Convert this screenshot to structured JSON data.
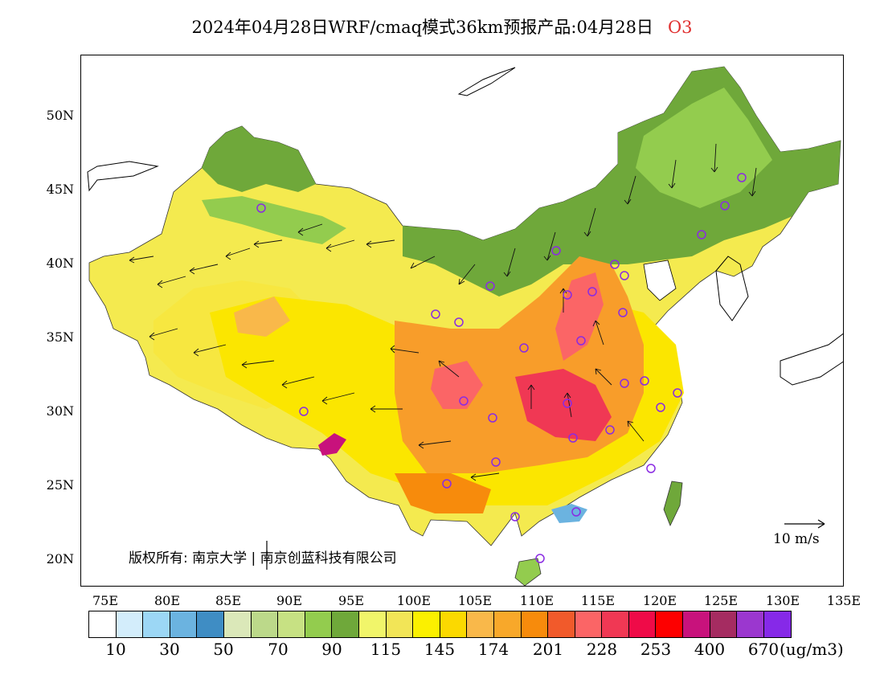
{
  "title": {
    "main": "2024年04月28日WRF/cmaq模式36km预报产品:04月28日",
    "species": "O3"
  },
  "map": {
    "latitude_labels": [
      "50N",
      "45N",
      "40N",
      "35N",
      "30N",
      "25N",
      "20N"
    ],
    "longitude_labels": [
      "75E",
      "80E",
      "85E",
      "90E",
      "95E",
      "100E",
      "105E",
      "110E",
      "115E",
      "120E",
      "125E",
      "130E",
      "135E"
    ],
    "copyright": "版权所有: 南京大学 | 南京创蓝科技有限公司",
    "wind_scale": "10 m/s",
    "colors": {
      "green_low": "#6fa83a",
      "yellow_mid": "#f7e200",
      "orange_high": "#f08a20",
      "red_peak": "#e8354a"
    }
  },
  "colorbar": {
    "colors": [
      "#ffffff",
      "#d3edfb",
      "#9cd7f5",
      "#6bb3e0",
      "#3f8dc4",
      "#dbe8b9",
      "#bcd98a",
      "#c7e183",
      "#93cc4e",
      "#6fa83a",
      "#f1f56a",
      "#f2e557",
      "#fbf000",
      "#fbd900",
      "#f9b84a",
      "#f8a82a",
      "#f78b0c",
      "#f15a2b",
      "#fb6566",
      "#f03854",
      "#ef0b48",
      "#fd0000",
      "#c8127c",
      "#a52c61",
      "#9b37cf",
      "#8629e8"
    ],
    "labels": [
      "10",
      "30",
      "50",
      "70",
      "90",
      "115",
      "145",
      "174",
      "201",
      "228",
      "253",
      "400",
      "670"
    ],
    "units": "(ug/m3)"
  }
}
